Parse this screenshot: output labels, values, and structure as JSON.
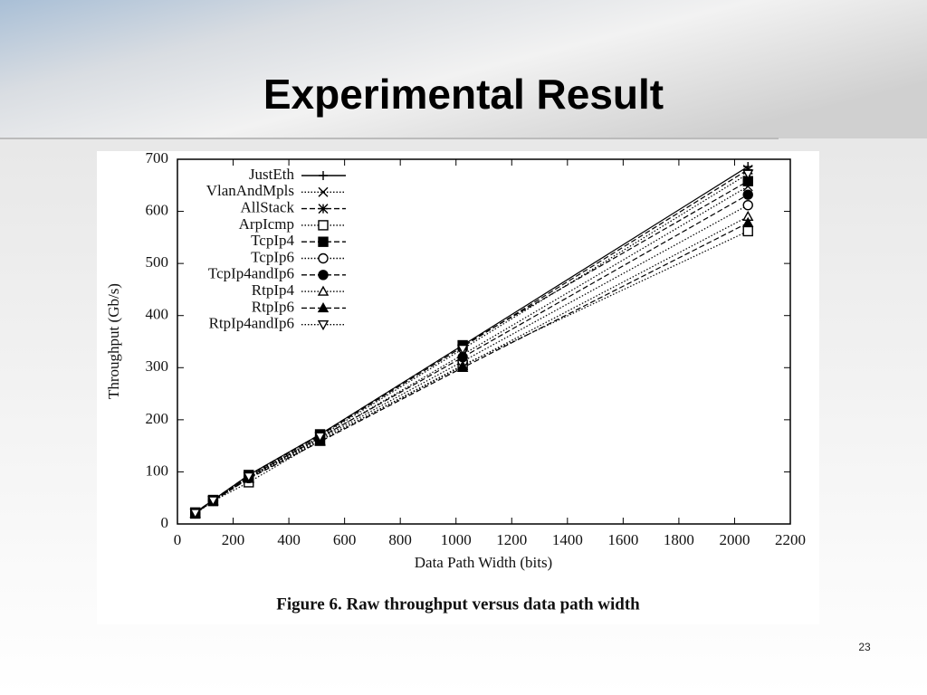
{
  "slide": {
    "title": "Experimental Result",
    "page_number": "23"
  },
  "chart_data": {
    "type": "line",
    "caption": "Figure 6. Raw throughput versus data path width",
    "x_label": "Data Path Width (bits)",
    "y_label": "Throughput (Gb/s)",
    "x": [
      64,
      128,
      256,
      512,
      1024,
      2048
    ],
    "xlim": [
      0,
      2200
    ],
    "xticks": [
      0,
      200,
      400,
      600,
      800,
      1000,
      1200,
      1400,
      1600,
      1800,
      2000,
      2200
    ],
    "ylim": [
      0,
      700
    ],
    "yticks": [
      0,
      100,
      200,
      300,
      400,
      500,
      600,
      700
    ],
    "legend": "upper left",
    "series": [
      {
        "name": "JustEth",
        "color": "#000000",
        "dash": "solid",
        "marker": "plus",
        "values": [
          22,
          46,
          94,
          172,
          343,
          686
        ]
      },
      {
        "name": "VlanAndMpls",
        "color": "#000000",
        "dash": "dotted",
        "marker": "cross",
        "values": [
          21,
          45,
          90,
          165,
          325,
          648
        ]
      },
      {
        "name": "AllStack",
        "color": "#000000",
        "dash": "dashed",
        "marker": "star",
        "values": [
          22,
          46,
          93,
          170,
          340,
          680
        ]
      },
      {
        "name": "ArpIcmp",
        "color": "#000000",
        "dash": "dotted",
        "marker": "square-open",
        "values": [
          20,
          44,
          80,
          160,
          305,
          562
        ]
      },
      {
        "name": "TcpIp4",
        "color": "#000000",
        "dash": "dashed",
        "marker": "square",
        "values": [
          22,
          46,
          94,
          172,
          343,
          658
        ]
      },
      {
        "name": "TcpIp6",
        "color": "#000000",
        "dash": "dotted",
        "marker": "circle-open",
        "values": [
          21,
          45,
          88,
          163,
          312,
          612
        ]
      },
      {
        "name": "TcpIp4andIp6",
        "color": "#000000",
        "dash": "dashed",
        "marker": "circle",
        "values": [
          21,
          45,
          90,
          166,
          320,
          632
        ]
      },
      {
        "name": "RtpIp4",
        "color": "#000000",
        "dash": "dotted",
        "marker": "triangle-open",
        "values": [
          20,
          44,
          88,
          160,
          303,
          590
        ]
      },
      {
        "name": "RtpIp6",
        "color": "#000000",
        "dash": "dashed",
        "marker": "triangle",
        "values": [
          20,
          44,
          87,
          158,
          300,
          578
        ]
      },
      {
        "name": "RtpIp4andIp6",
        "color": "#000000",
        "dash": "dotted",
        "marker": "down-triangle-open",
        "values": [
          21,
          45,
          91,
          168,
          336,
          672
        ]
      }
    ]
  }
}
